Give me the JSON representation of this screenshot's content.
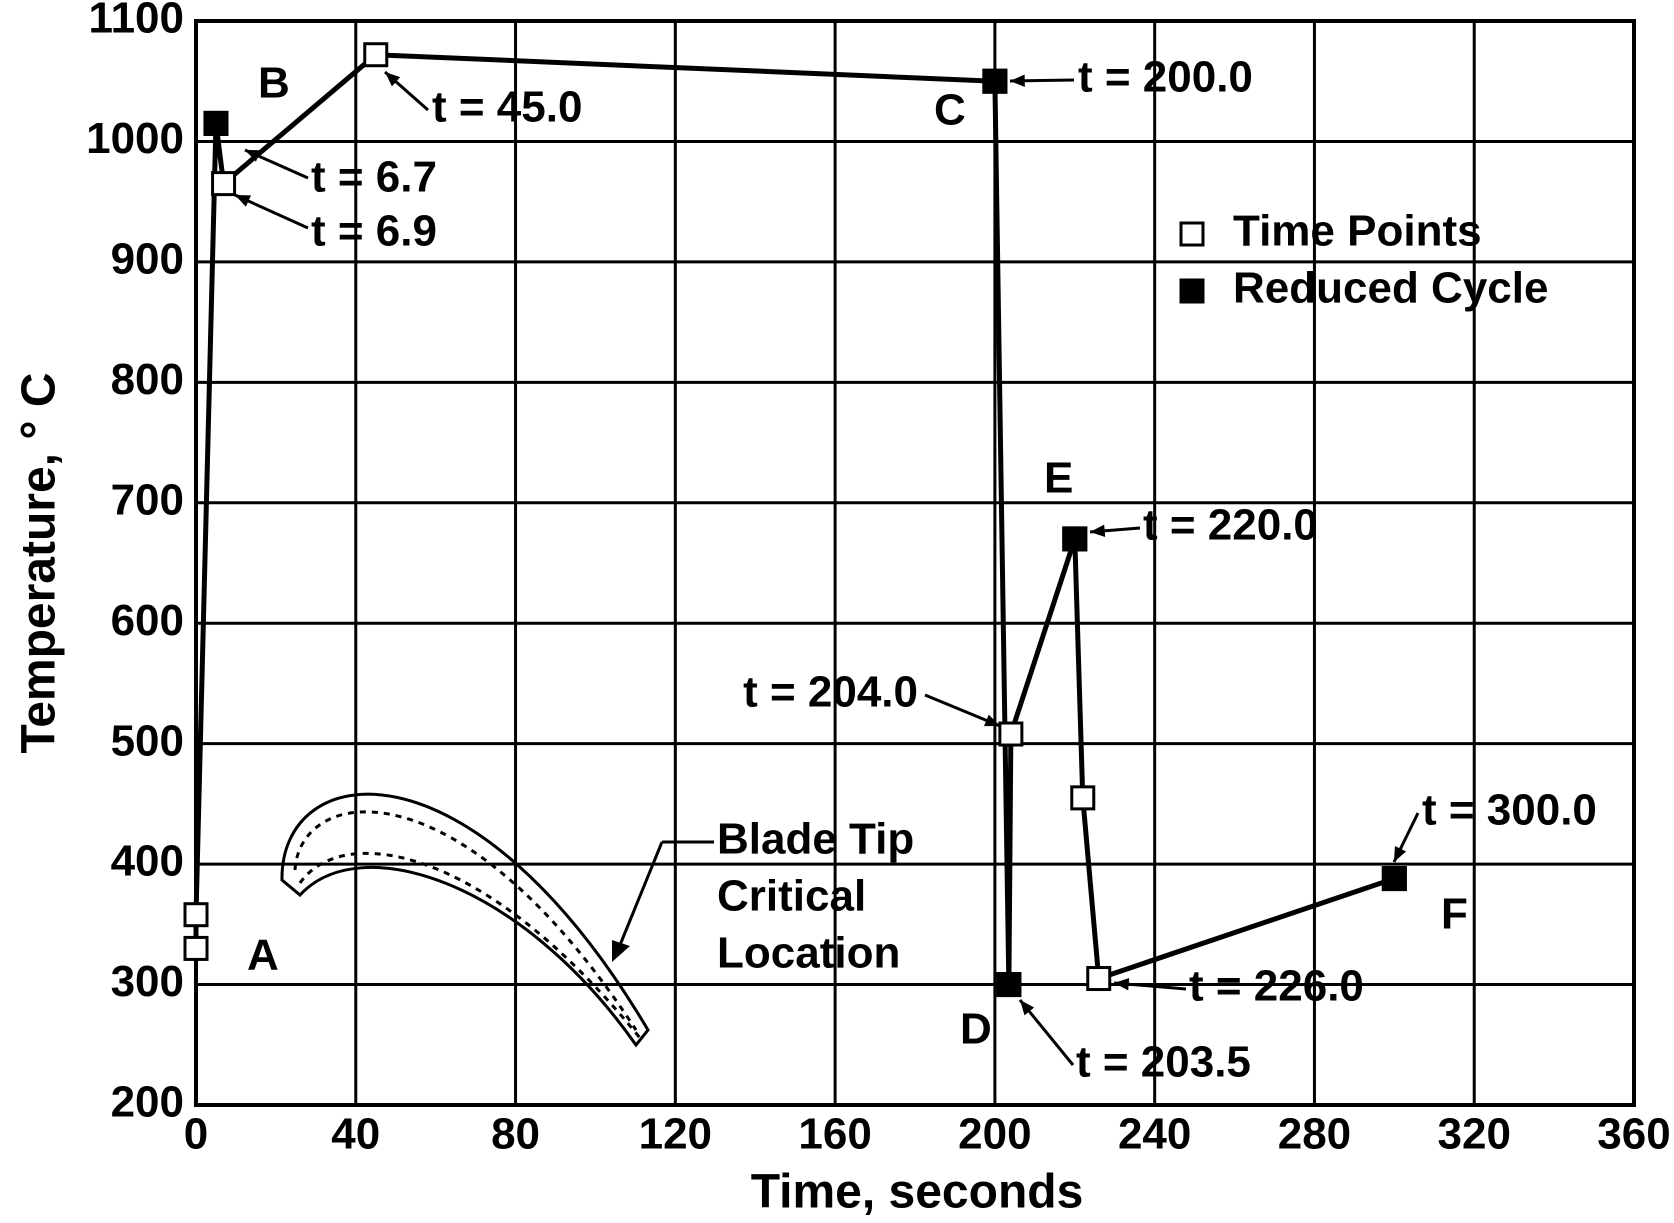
{
  "chart_data": {
    "type": "line",
    "xlabel": "Time, seconds",
    "ylabel": "Temperature, ° C",
    "xlim": [
      0,
      360
    ],
    "xticks": [
      0,
      40,
      80,
      120,
      160,
      200,
      240,
      280,
      320,
      360
    ],
    "ylim": [
      200,
      1100
    ],
    "yticks": [
      200,
      300,
      400,
      500,
      600,
      700,
      800,
      900,
      1000,
      1100
    ],
    "grid": true,
    "series": [
      {
        "name": "Time Points",
        "color": "#000000",
        "marker": "open-square",
        "x": [
          0,
          0,
          5,
          6.9,
          45,
          200,
          203.5,
          204,
          220,
          222,
          226,
          300
        ],
        "values": [
          330,
          358,
          1015,
          965,
          1072,
          1050,
          300,
          508,
          670,
          455,
          305,
          388
        ]
      },
      {
        "name": "Reduced Cycle",
        "color": "#000000",
        "marker": "filled-square",
        "x": [
          5,
          200,
          203.5,
          220,
          300
        ],
        "values": [
          1015,
          1050,
          300,
          670,
          388
        ]
      }
    ],
    "annotations": [
      "A",
      "B",
      "C",
      "D",
      "E",
      "F",
      "t = 6.7",
      "t = 6.9",
      "t = 45.0",
      "t = 200.0",
      "t = 204.0",
      "t = 220.0",
      "t = 226.0",
      "t = 203.5",
      "t = 300.0"
    ],
    "inset_label": [
      "Blade Tip",
      "Critical",
      "Location"
    ]
  }
}
